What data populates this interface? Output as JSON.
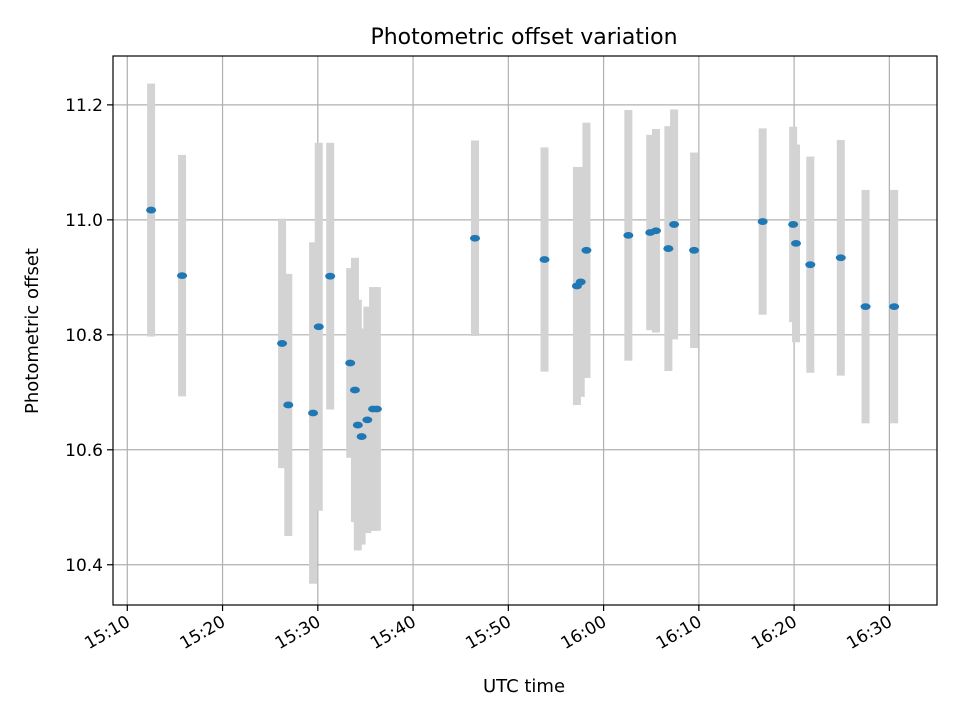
{
  "chart_data": {
    "type": "scatter",
    "title": "Photometric offset variation",
    "xlabel": "UTC time",
    "ylabel": "Photometric offset",
    "grid": true,
    "xlim": [
      "15:08:30",
      "16:35:00"
    ],
    "ylim": [
      10.33,
      11.285
    ],
    "xticks": [
      "15:10",
      "15:20",
      "15:30",
      "15:40",
      "15:50",
      "16:00",
      "16:10",
      "16:20",
      "16:30"
    ],
    "yticks": [
      10.4,
      10.6,
      10.8,
      11.0,
      11.2
    ],
    "colors": {
      "marker": "#1f77b4",
      "errorbar": "#d3d3d3",
      "grid": "#b0b0b0"
    },
    "series": [
      {
        "points": [
          {
            "x": "15:12:30",
            "y": 11.017,
            "err": 0.22
          },
          {
            "x": "15:15:45",
            "y": 10.903,
            "err": 0.21
          },
          {
            "x": "15:26:15",
            "y": 10.785,
            "err": 0.217
          },
          {
            "x": "15:26:54",
            "y": 10.678,
            "err": 0.228
          },
          {
            "x": "15:29:30",
            "y": 10.664,
            "err": 0.297
          },
          {
            "x": "15:30:06",
            "y": 10.814,
            "err": 0.32
          },
          {
            "x": "15:31:18",
            "y": 10.902,
            "err": 0.232
          },
          {
            "x": "15:33:24",
            "y": 10.751,
            "err": 0.165
          },
          {
            "x": "15:33:54",
            "y": 10.704,
            "err": 0.23
          },
          {
            "x": "15:34:12",
            "y": 10.643,
            "err": 0.218
          },
          {
            "x": "15:34:36",
            "y": 10.623,
            "err": 0.188
          },
          {
            "x": "15:35:12",
            "y": 10.652,
            "err": 0.197
          },
          {
            "x": "15:35:48",
            "y": 10.671,
            "err": 0.212
          },
          {
            "x": "15:36:12",
            "y": 10.671,
            "err": 0.212
          },
          {
            "x": "15:46:30",
            "y": 10.968,
            "err": 0.17
          },
          {
            "x": "15:53:48",
            "y": 10.931,
            "err": 0.195
          },
          {
            "x": "15:57:12",
            "y": 10.885,
            "err": 0.207
          },
          {
            "x": "15:57:36",
            "y": 10.892,
            "err": 0.2
          },
          {
            "x": "15:58:12",
            "y": 10.947,
            "err": 0.222
          },
          {
            "x": "16:02:36",
            "y": 10.973,
            "err": 0.218
          },
          {
            "x": "16:04:54",
            "y": 10.978,
            "err": 0.17
          },
          {
            "x": "16:05:30",
            "y": 10.981,
            "err": 0.177
          },
          {
            "x": "16:06:48",
            "y": 10.95,
            "err": 0.213
          },
          {
            "x": "16:07:24",
            "y": 10.992,
            "err": 0.2
          },
          {
            "x": "16:09:30",
            "y": 10.947,
            "err": 0.17
          },
          {
            "x": "16:16:42",
            "y": 10.997,
            "err": 0.162
          },
          {
            "x": "16:19:54",
            "y": 10.992,
            "err": 0.17
          },
          {
            "x": "16:20:12",
            "y": 10.959,
            "err": 0.172
          },
          {
            "x": "16:21:42",
            "y": 10.922,
            "err": 0.188
          },
          {
            "x": "16:24:54",
            "y": 10.934,
            "err": 0.205
          },
          {
            "x": "16:27:30",
            "y": 10.849,
            "err": 0.203
          },
          {
            "x": "16:30:30",
            "y": 10.849,
            "err": 0.203
          }
        ]
      }
    ]
  }
}
